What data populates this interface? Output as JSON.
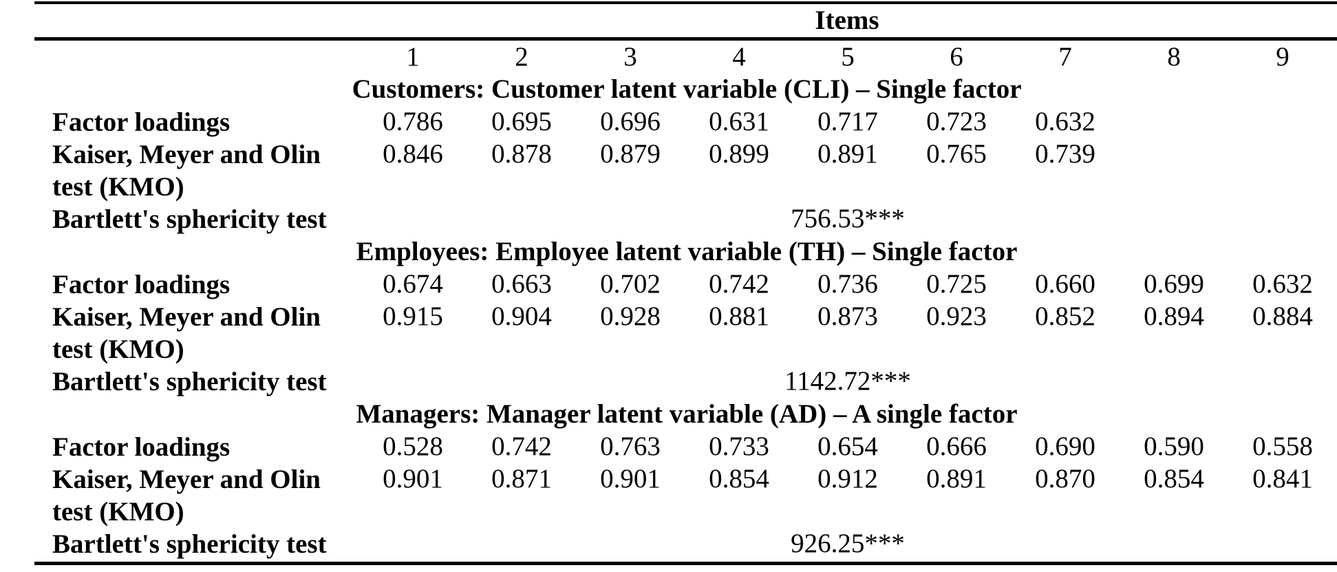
{
  "table": {
    "header": "Items",
    "columns": [
      "1",
      "2",
      "3",
      "4",
      "5",
      "6",
      "7",
      "8",
      "9"
    ],
    "sections": [
      {
        "title": "Customers: Customer latent variable (CLI) – Single factor",
        "rows": [
          {
            "label": "Factor loadings",
            "values": [
              "0.786",
              "0.695",
              "0.696",
              "0.631",
              "0.717",
              "0.723",
              "0.632"
            ]
          },
          {
            "label_line1": "Kaiser, Meyer and Olin",
            "label_line2": "test (KMO)",
            "values": [
              "0.846",
              "0.878",
              "0.879",
              "0.899",
              "0.891",
              "0.765",
              "0.739"
            ]
          },
          {
            "label": "Bartlett's sphericity test",
            "value": "756.53***"
          }
        ]
      },
      {
        "title": "Employees: Employee latent variable (TH) – Single factor",
        "rows": [
          {
            "label": "Factor loadings",
            "values": [
              "0.674",
              "0.663",
              "0.702",
              "0.742",
              "0.736",
              "0.725",
              "0.660",
              "0.699",
              "0.632"
            ]
          },
          {
            "label_line1": "Kaiser, Meyer and Olin",
            "label_line2": "test (KMO)",
            "values": [
              "0.915",
              "0.904",
              "0.928",
              "0.881",
              "0.873",
              "0.923",
              "0.852",
              "0.894",
              "0.884"
            ]
          },
          {
            "label": "Bartlett's sphericity test",
            "value": "1142.72***"
          }
        ]
      },
      {
        "title": "Managers: Manager latent variable (AD) – A single factor",
        "rows": [
          {
            "label": "Factor loadings",
            "values": [
              "0.528",
              "0.742",
              "0.763",
              "0.733",
              "0.654",
              "0.666",
              "0.690",
              "0.590",
              "0.558"
            ]
          },
          {
            "label_line1": "Kaiser, Meyer and Olin",
            "label_line2": "test (KMO)",
            "values": [
              "0.901",
              "0.871",
              "0.901",
              "0.854",
              "0.912",
              "0.891",
              "0.870",
              "0.854",
              "0.841"
            ]
          },
          {
            "label": "Bartlett's sphericity test",
            "value": "926.25***"
          }
        ]
      }
    ]
  }
}
